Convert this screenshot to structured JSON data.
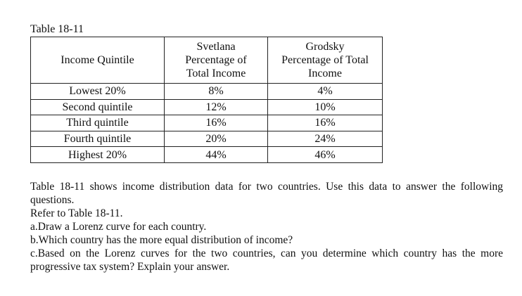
{
  "document": {
    "caption": "Table 18-11",
    "table": {
      "headers": {
        "income_quintile": "Income Quintile",
        "svetlana": [
          "Svetlana",
          "Percentage of",
          "Total Income"
        ],
        "grodsky": [
          "Grodsky",
          "Percentage of Total",
          "Income"
        ]
      },
      "rows": [
        {
          "quintile": "Lowest 20%",
          "svetlana": "8%",
          "grodsky": "4%"
        },
        {
          "quintile": "Second quintile",
          "svetlana": "12%",
          "grodsky": "10%"
        },
        {
          "quintile": "Third quintile",
          "svetlana": "16%",
          "grodsky": "16%"
        },
        {
          "quintile": "Fourth quintile",
          "svetlana": "20%",
          "grodsky": "24%"
        },
        {
          "quintile": "Highest 20%",
          "svetlana": "44%",
          "grodsky": "46%"
        }
      ]
    },
    "intro": "Table 18-11 shows income distribution data for two countries. Use this data to answer the following questions.",
    "refer": "Refer to Table 18-11.",
    "question_a": "a.Draw a Lorenz curve for each country.",
    "question_b": "b.Which country has the more equal distribution of income?",
    "question_c": "c.Based on the Lorenz curves for the two countries, can you determine which country has the more progressive tax system? Explain your answer."
  }
}
